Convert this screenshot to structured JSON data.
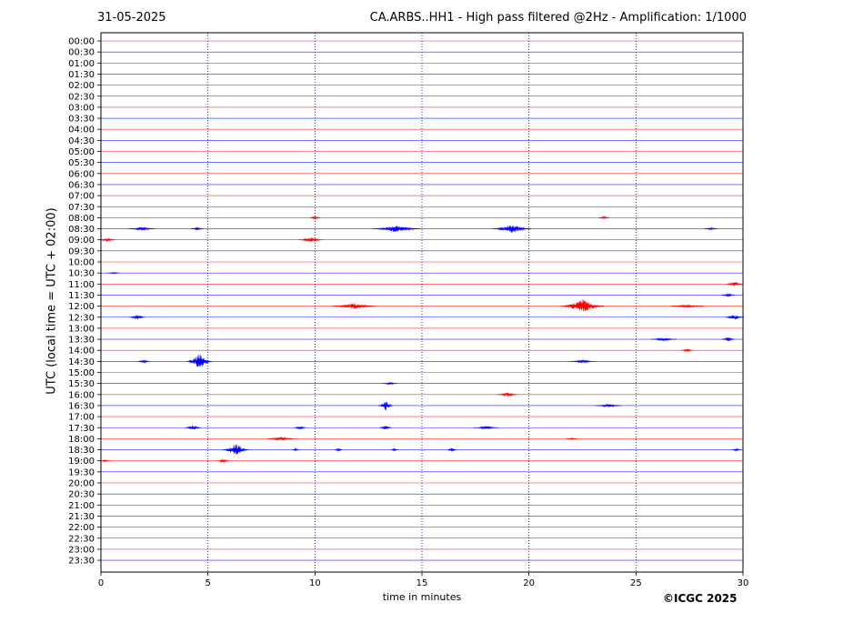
{
  "header": {
    "date": "31-05-2025",
    "title": "CA.ARBS..HH1 - High pass filtered @2Hz - Amplification: 1/1000"
  },
  "footer": {
    "copyright": "©ICGC 2025"
  },
  "colors": {
    "trace_a": "#ff0000",
    "trace_b": "#0000ff",
    "axes": "#000000",
    "grid": "#00008b"
  },
  "chart_data": {
    "type": "line",
    "title": "CA.ARBS..HH1 - High pass filtered @2Hz - Amplification: 1/1000",
    "xlabel": "time in minutes",
    "ylabel": "UTC (local time = UTC + 02:00)",
    "xlim": [
      0,
      30
    ],
    "xticks": [
      0,
      5,
      10,
      15,
      20,
      25,
      30
    ],
    "xgrid": [
      5,
      10,
      15,
      20,
      25
    ],
    "grid": "vertical dotted",
    "rows": [
      "00:00",
      "00:30",
      "01:00",
      "01:30",
      "02:00",
      "02:30",
      "03:00",
      "03:30",
      "04:00",
      "04:30",
      "05:00",
      "05:30",
      "06:00",
      "06:30",
      "07:00",
      "07:30",
      "08:00",
      "08:30",
      "09:00",
      "09:30",
      "10:00",
      "10:30",
      "11:00",
      "11:30",
      "12:00",
      "12:30",
      "13:00",
      "13:30",
      "14:00",
      "14:30",
      "15:00",
      "15:30",
      "16:00",
      "16:30",
      "17:00",
      "17:30",
      "18:00",
      "18:30",
      "19:00",
      "19:30",
      "20:00",
      "20:30",
      "21:00",
      "21:30",
      "22:00",
      "22:30",
      "23:00",
      "23:30"
    ],
    "row_colors": "alternating red / blue starting with red at 00:00",
    "events": [
      {
        "row": "08:00",
        "t": 10.0,
        "amp": 0.2,
        "dur": 0.5
      },
      {
        "row": "08:00",
        "t": 23.5,
        "amp": 0.2,
        "dur": 0.5
      },
      {
        "row": "08:30",
        "t": 1.9,
        "amp": 0.25,
        "dur": 1.2
      },
      {
        "row": "08:30",
        "t": 4.5,
        "amp": 0.2,
        "dur": 0.6
      },
      {
        "row": "08:30",
        "t": 13.8,
        "amp": 0.45,
        "dur": 2.2
      },
      {
        "row": "08:30",
        "t": 19.2,
        "amp": 0.55,
        "dur": 1.8
      },
      {
        "row": "08:30",
        "t": 28.5,
        "amp": 0.15,
        "dur": 0.6
      },
      {
        "row": "09:00",
        "t": 0.3,
        "amp": 0.25,
        "dur": 0.8
      },
      {
        "row": "09:00",
        "t": 9.8,
        "amp": 0.3,
        "dur": 1.2
      },
      {
        "row": "10:30",
        "t": 0.6,
        "amp": 0.1,
        "dur": 0.6
      },
      {
        "row": "11:00",
        "t": 29.6,
        "amp": 0.3,
        "dur": 0.8
      },
      {
        "row": "11:30",
        "t": 29.3,
        "amp": 0.2,
        "dur": 0.6
      },
      {
        "row": "12:00",
        "t": 11.8,
        "amp": 0.35,
        "dur": 2.0
      },
      {
        "row": "12:00",
        "t": 22.5,
        "amp": 0.85,
        "dur": 2.0
      },
      {
        "row": "12:00",
        "t": 27.4,
        "amp": 0.2,
        "dur": 1.5
      },
      {
        "row": "12:30",
        "t": 1.7,
        "amp": 0.3,
        "dur": 0.8
      },
      {
        "row": "12:30",
        "t": 29.6,
        "amp": 0.35,
        "dur": 0.9
      },
      {
        "row": "13:30",
        "t": 26.3,
        "amp": 0.2,
        "dur": 1.2
      },
      {
        "row": "13:30",
        "t": 29.3,
        "amp": 0.3,
        "dur": 0.6
      },
      {
        "row": "14:00",
        "t": 27.4,
        "amp": 0.2,
        "dur": 0.6
      },
      {
        "row": "14:30",
        "t": 4.6,
        "amp": 0.95,
        "dur": 1.2
      },
      {
        "row": "14:30",
        "t": 2.0,
        "amp": 0.2,
        "dur": 0.6
      },
      {
        "row": "14:30",
        "t": 22.5,
        "amp": 0.2,
        "dur": 1.2
      },
      {
        "row": "15:30",
        "t": 13.5,
        "amp": 0.15,
        "dur": 0.8
      },
      {
        "row": "16:00",
        "t": 19.0,
        "amp": 0.25,
        "dur": 1.0
      },
      {
        "row": "16:30",
        "t": 13.3,
        "amp": 0.65,
        "dur": 0.7
      },
      {
        "row": "16:30",
        "t": 23.7,
        "amp": 0.2,
        "dur": 1.2
      },
      {
        "row": "17:30",
        "t": 4.3,
        "amp": 0.3,
        "dur": 0.8
      },
      {
        "row": "17:30",
        "t": 9.3,
        "amp": 0.2,
        "dur": 0.6
      },
      {
        "row": "17:30",
        "t": 13.3,
        "amp": 0.25,
        "dur": 0.6
      },
      {
        "row": "17:30",
        "t": 18.0,
        "amp": 0.2,
        "dur": 1.2
      },
      {
        "row": "18:00",
        "t": 8.4,
        "amp": 0.25,
        "dur": 1.2
      },
      {
        "row": "18:00",
        "t": 22.0,
        "amp": 0.12,
        "dur": 0.5
      },
      {
        "row": "18:30",
        "t": 6.3,
        "amp": 0.75,
        "dur": 1.2
      },
      {
        "row": "18:30",
        "t": 11.1,
        "amp": 0.25,
        "dur": 0.3
      },
      {
        "row": "18:30",
        "t": 13.7,
        "amp": 0.25,
        "dur": 0.3
      },
      {
        "row": "18:30",
        "t": 16.4,
        "amp": 0.3,
        "dur": 0.4
      },
      {
        "row": "18:30",
        "t": 9.1,
        "amp": 0.2,
        "dur": 0.3
      },
      {
        "row": "18:30",
        "t": 29.7,
        "amp": 0.15,
        "dur": 0.4
      },
      {
        "row": "19:00",
        "t": 5.7,
        "amp": 0.2,
        "dur": 0.6
      },
      {
        "row": "19:00",
        "t": 0.2,
        "amp": 0.12,
        "dur": 0.5
      }
    ]
  }
}
